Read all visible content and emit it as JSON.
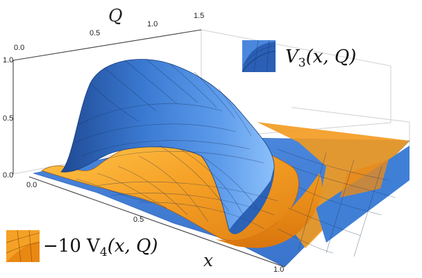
{
  "chart_data": {
    "type": "surface3d",
    "x_axis": {
      "label": "x",
      "ticks": [
        "0.0",
        "0.5",
        "1.0"
      ],
      "range": [
        0,
        1
      ]
    },
    "q_axis": {
      "label": "Q",
      "ticks": [
        "0.0",
        "0.5",
        "1.0",
        "1.5"
      ],
      "range": [
        0,
        1.5
      ]
    },
    "z_axis": {
      "ticks": [
        "0.0",
        "0.5",
        "1.0"
      ],
      "range": [
        0,
        1
      ]
    },
    "series": [
      {
        "name": "V_3(x,Q)",
        "legend": {
          "prefix": "V",
          "sub": "3",
          "args": "(x, Q)"
        },
        "color": "#3f7fd6",
        "color_light": "#6fa6f0",
        "peak_value": 1.0,
        "peak_x": 0.5,
        "peak_q": 0.2
      },
      {
        "name": "-10 V_4(x,Q)",
        "legend": {
          "prefix": "−10 V",
          "sub": "4",
          "args": "(x, Q)"
        },
        "color": "#f39a1d",
        "color_light": "#ffc24d",
        "peak_value": 0.55,
        "peak_x": 0.5,
        "peak_q": 0.6
      }
    ],
    "legend_placement": [
      "top-right",
      "bottom-left"
    ],
    "grid": true
  }
}
